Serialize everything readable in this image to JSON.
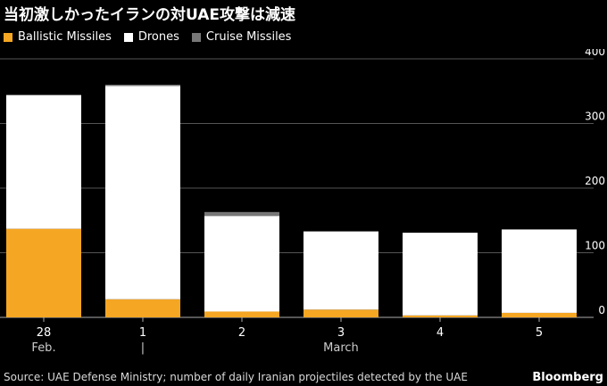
{
  "header": {
    "title": "当初激しかったイランの対UAE攻撃は減速"
  },
  "legend": [
    {
      "label": "Ballistic Missiles",
      "color": "#f5a623"
    },
    {
      "label": "Drones",
      "color": "#ffffff"
    },
    {
      "label": "Cruise Missiles",
      "color": "#777777"
    }
  ],
  "chart_data": {
    "type": "bar",
    "stacked": true,
    "categories": [
      "28",
      "1",
      "2",
      "3",
      "4",
      "5"
    ],
    "period_labels": [
      {
        "text": "Feb.",
        "category_index": 0
      },
      {
        "text": "|",
        "category_index": 1
      },
      {
        "text": "March",
        "category_index": 3
      }
    ],
    "series": [
      {
        "name": "Ballistic Missiles",
        "color": "#f5a623",
        "values": [
          137,
          28,
          9,
          12,
          3,
          7
        ]
      },
      {
        "name": "Drones",
        "color": "#ffffff",
        "values": [
          207,
          330,
          148,
          121,
          128,
          129
        ]
      },
      {
        "name": "Cruise Missiles",
        "color": "#777777",
        "values": [
          0,
          2,
          6,
          0,
          0,
          0
        ]
      }
    ],
    "ylim": [
      0,
      400
    ],
    "yticks": [
      0,
      100,
      200,
      300,
      400
    ],
    "y_axis_position": "right",
    "grid": true,
    "legend_position": "top-left"
  },
  "footer": {
    "source": "Source: UAE Defense Ministry; number of daily Iranian projectiles detected by the UAE",
    "brand": "Bloomberg"
  }
}
